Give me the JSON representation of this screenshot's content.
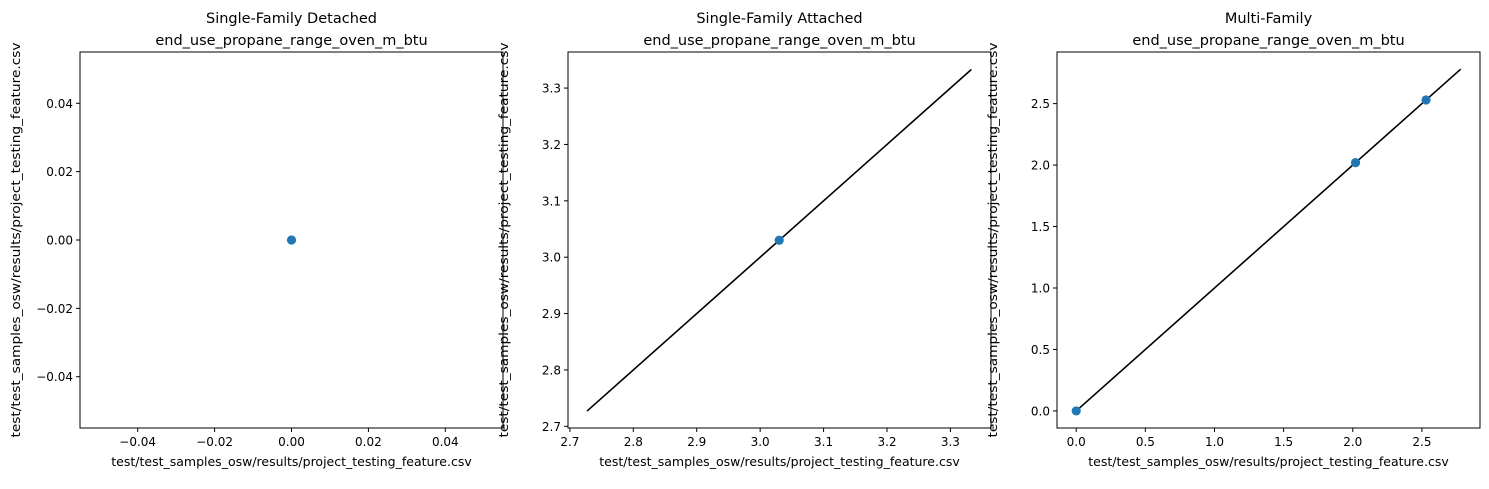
{
  "chart_data": [
    {
      "type": "scatter",
      "title_line1": "Single-Family Detached",
      "title_line2": "end_use_propane_range_oven_m_btu",
      "xlabel": "test/test_samples_osw/results/project_testing_feature.csv",
      "ylabel": "test/test_samples_osw/results/project_testing_feature.csv",
      "xlim": [
        -0.055,
        0.055
      ],
      "ylim": [
        -0.055,
        0.055
      ],
      "xticks": [
        -0.04,
        -0.02,
        0.0,
        0.02,
        0.04
      ],
      "yticks": [
        -0.04,
        -0.02,
        0.0,
        0.02,
        0.04
      ],
      "xtick_labels": [
        "−0.04",
        "−0.02",
        "0.00",
        "0.02",
        "0.04"
      ],
      "ytick_labels": [
        "−0.04",
        "−0.02",
        "0.00",
        "0.02",
        "0.04"
      ],
      "points": [
        {
          "x": 0.0,
          "y": 0.0
        }
      ],
      "line": null,
      "marker_color": "#1f77b4",
      "line_color": "#000000"
    },
    {
      "type": "scatter",
      "title_line1": "Single-Family Attached",
      "title_line2": "end_use_propane_range_oven_m_btu",
      "xlabel": "test/test_samples_osw/results/project_testing_feature.csv",
      "ylabel": "test/test_samples_osw/results/project_testing_feature.csv",
      "xlim": [
        2.697,
        3.364
      ],
      "ylim": [
        2.697,
        3.364
      ],
      "xticks": [
        2.7,
        2.8,
        2.9,
        3.0,
        3.1,
        3.2,
        3.3
      ],
      "yticks": [
        2.7,
        2.8,
        2.9,
        3.0,
        3.1,
        3.2,
        3.3
      ],
      "xtick_labels": [
        "2.7",
        "2.8",
        "2.9",
        "3.0",
        "3.1",
        "3.2",
        "3.3"
      ],
      "ytick_labels": [
        "2.7",
        "2.8",
        "2.9",
        "3.0",
        "3.1",
        "3.2",
        "3.3"
      ],
      "points": [
        {
          "x": 3.03,
          "y": 3.03
        }
      ],
      "line": [
        2.727,
        3.333
      ],
      "marker_color": "#1f77b4",
      "line_color": "#000000"
    },
    {
      "type": "scatter",
      "title_line1": "Multi-Family",
      "title_line2": "end_use_propane_range_oven_m_btu",
      "xlabel": "test/test_samples_osw/results/project_testing_feature.csv",
      "ylabel": "test/test_samples_osw/results/project_testing_feature.csv",
      "xlim": [
        -0.139,
        2.92
      ],
      "ylim": [
        -0.139,
        2.92
      ],
      "xticks": [
        0.0,
        0.5,
        1.0,
        1.5,
        2.0,
        2.5
      ],
      "yticks": [
        0.0,
        0.5,
        1.0,
        1.5,
        2.0,
        2.5
      ],
      "xtick_labels": [
        "0.0",
        "0.5",
        "1.0",
        "1.5",
        "2.0",
        "2.5"
      ],
      "ytick_labels": [
        "0.0",
        "0.5",
        "1.0",
        "1.5",
        "2.0",
        "2.5"
      ],
      "points": [
        {
          "x": 0.0,
          "y": 0.0
        },
        {
          "x": 2.02,
          "y": 2.02
        },
        {
          "x": 2.53,
          "y": 2.53
        }
      ],
      "line": [
        0.0,
        2.78
      ],
      "marker_color": "#1f77b4",
      "line_color": "#000000"
    }
  ]
}
